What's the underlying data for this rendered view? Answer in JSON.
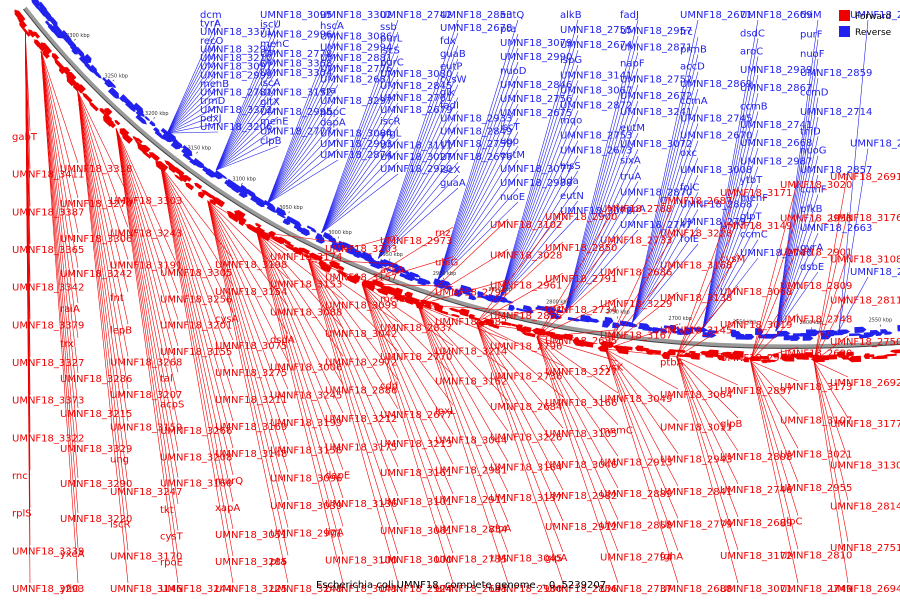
{
  "caption": "Escherichia coli UMNF18, complete genome. - 0..5239207",
  "legend": [
    {
      "label": "Forward",
      "color": "#ee0000"
    },
    {
      "label": "Reverse",
      "color": "#2222ee"
    }
  ],
  "colors": {
    "forward": "#ee0000",
    "reverse": "#2222ee",
    "backbone": "#808080"
  },
  "kbp_ticks": [
    "3300 kbp",
    "3250 kbp",
    "3200 kbp",
    "3150 kbp",
    "3100 kbp",
    "3050 kbp",
    "3000 kbp",
    "2950 kbp",
    "2900 kbp",
    "2850 kbp",
    "2800 kbp",
    "2750 kbp",
    "2700 kbp",
    "2650 kbp",
    "2600 kbp",
    "2550 kbp"
  ],
  "reverse_labels": [
    "dcm",
    "tyrA",
    "UMNF18_3371",
    "recO",
    "UMNF18_3294",
    "UMNF18_3210",
    "UMNF18_3097",
    "UMNF18_2999",
    "menB",
    "UMNF18_2781",
    "trmD",
    "UMNF18_3372",
    "pdxJ",
    "UMNF18_3206",
    "UMNF18_3095",
    "iscU",
    "UMNF18_2996",
    "menC",
    "UMNF18_2778",
    "UMNF18_3368",
    "UMNF18_3304",
    "iscA",
    "UMNF18_3152",
    "gltX",
    "UMNF18_2995",
    "menE",
    "UMNF18_2777",
    "clpB",
    "UMNF18_3302",
    "hscA",
    "UMNF18_3086",
    "UMNF18_2994",
    "UMNF18_2881",
    "UMNF18_2776",
    "UMNF18_2681",
    "era",
    "UMNF18_3297",
    "pbpC",
    "dapA",
    "UMNF18_3084",
    "UMNF18_2993",
    "UMNF18_2874",
    "UMNF18_2742",
    "ssb",
    "purL",
    "iscS",
    "purC",
    "UMNF18_3080",
    "UMNF18_2845",
    "UMNF18_2761",
    "UMNF18_2679",
    "iscR",
    "yfgL",
    "UMNF18_3111",
    "UMNF18_3027",
    "UMNF18_2920",
    "UMNF18_2853",
    "UMNF18_2678",
    "fdx",
    "guaB",
    "eutP",
    "cysW",
    "glk",
    "fadI",
    "UMNF18_2933",
    "UMNF18_2849",
    "UMNF18_2759",
    "UMNF18_2676",
    "iscX",
    "guaA",
    "eutQ",
    "pta",
    "UMNF18_3079",
    "UMNF18_2990",
    "nuoD",
    "UMNF18_2846",
    "UMNF18_2756",
    "UMNF18_2675",
    "iscT",
    "upp",
    "eutM",
    "UMNF18_3077",
    "UMNF18_2988",
    "nuoE",
    "alkB",
    "UMNF18_2755",
    "UMNF18_2674",
    "ispG",
    "UMNF18_3141",
    "UMNF18_3067",
    "UMNF18_2872",
    "mqo",
    "UMNF18_2753",
    "UMNF18_2673",
    "hisS",
    "hda",
    "eutN",
    "UMNF18_3078",
    "fadJ",
    "UMNF18_2957",
    "UMNF18_2871",
    "napF",
    "UMNF18_2752",
    "UMNF18_2672",
    "UMNF18_3241",
    "eutM",
    "UMNF18_3072",
    "sixA",
    "truA",
    "UMNF18_2870",
    "napA",
    "UMNF18_2747",
    "UMNF18_2671",
    "frc",
    "prmB",
    "accD",
    "UMNF18_2869",
    "ccmA",
    "UMNF18_2745",
    "UMNF18_2670",
    "oxc",
    "UMNF18_3008",
    "folC",
    "UMNF18_2868",
    "UMNF18_2797",
    "rolE",
    "UMNF18_2669",
    "dsdC",
    "aroC",
    "UMNF18_2939",
    "UMNF18_2867",
    "ccmB",
    "UMNF18_2741",
    "UMNF18_2668",
    "UMNF18_2987",
    "ytbT",
    "menF",
    "glpT",
    "ccmC",
    "UMNF18_2740",
    "thiM",
    "purF",
    "nuoF",
    "UMNF18_2859",
    "ccmD",
    "UMNF18_2714",
    "thiD",
    "nuoG",
    "UMNF18_2857",
    "ccmF",
    "pfkB",
    "UMNF18_2663",
    "gyrA",
    "dsbE",
    "UMNF18_2739",
    "UMNF18_2661",
    "UMNF18_2738"
  ],
  "forward_labels": [
    "gabT",
    "UMNF18_3411",
    "UMNF18_3387",
    "UMNF18_3365",
    "UMNF18_3342",
    "UMNF18_3379",
    "UMNF18_3327",
    "UMNF18_3373",
    "UMNF18_3322",
    "rnc",
    "rplS",
    "UMNF18_3339",
    "UMNF18_3293",
    "UMNF18_3318",
    "UMNF18_3274",
    "UMNF18_3306",
    "UMNF18_3242",
    "raiA",
    "trx",
    "UMNF18_3286",
    "UMNF18_3215",
    "UMNF18_3329",
    "UMNF18_3290",
    "UMNF18_3220",
    "yxeA",
    "yfiO",
    "UMNF18_3303",
    "UMNF18_3243",
    "UMNF18_3191",
    "fnt",
    "lepB",
    "UMNF18_3268",
    "UMNF18_3207",
    "UMNF18_3159",
    "ung",
    "UMNF18_3247",
    "iscR",
    "UMNF18_3170",
    "UMNF18_3146",
    "UMNF18_3305",
    "UMNF18_3256",
    "UMNF18_3201",
    "UMNF18_3155",
    "tal",
    "acpS",
    "UMNF18_3266",
    "UMNF18_3208",
    "UMNF18_3160",
    "tkt",
    "cysT",
    "rpoE",
    "UMNF18_3244",
    "UMNF18_3198",
    "UMNF18_3154",
    "cysA",
    "UMNF18_3075",
    "UMNF18_3275",
    "UMNF18_3211",
    "UMNF18_3169",
    "UMNF18_3148",
    "murQ",
    "xapA",
    "UMNF18_3051",
    "UMNF18_3285",
    "UMNF18_3225",
    "UMNF18_3174",
    "UMNF18_3153",
    "UMNF18_3088",
    "dsdA",
    "UMNF18_3006",
    "UMNF18_3245",
    "UMNF18_3199",
    "UMNF18_3156",
    "UMNF18_3096",
    "UMNF18_3039",
    "UMNF18_2971",
    "pta",
    "UMNF18_3248",
    "UMNF18_3203",
    "UMNF18_3157",
    "UMNF18_3099",
    "UMNF18_3042",
    "UMNF18_2972",
    "UMNF18_2886",
    "UMNF18_3212",
    "UMNF18_3175",
    "dapE",
    "UMNF18_3136",
    "ligA",
    "UMNF18_3100",
    "UMNF18_3043",
    "UMNF18_2973",
    "ackA",
    "menD",
    "UMNF18_2837",
    "UMNF18_2770",
    "cdd",
    "UMNF18_2677",
    "UMNF18_3213",
    "UMNF18_3161",
    "UMNF18_3101",
    "UMNF18_3061",
    "UMNF18_3000",
    "UMNF18_2924",
    "rnz",
    "ubiG",
    "UMNF18_2795",
    "UMNF18_2682",
    "UMNF18_3214",
    "UMNF18_3162",
    "lpxL",
    "UMNF18_3044",
    "UMNF18_2981",
    "UMNF18_2911",
    "UMNF18_2854",
    "UMNF18_2735",
    "UMNF18_2683",
    "UMNF18_3102",
    "UMNF18_3028",
    "UMNF18_2961",
    "UMNF18_2855",
    "UMNF18_2796",
    "UMNF18_2736",
    "UMNF18_2684",
    "UMNF18_3226",
    "UMNF18_3164",
    "UMNF18_3137",
    "zipA",
    "UMNF18_3045",
    "UMNF18_2980",
    "UMNF18_2900",
    "UMNF18_2850",
    "UMNF18_2791",
    "UMNF18_2734",
    "UMNF18_2685",
    "UMNF18_3227",
    "UMNF18_3166",
    "UMNF18_3105",
    "UMNF18_3046",
    "UMNF18_2982",
    "UMNF18_2912",
    "glpA",
    "UMNF18_2856",
    "UMNF18_2788",
    "UMNF18_2733",
    "UMNF18_2686",
    "UMNF18_3229",
    "UMNF18_3167",
    "cysK",
    "UMNF18_3049",
    "mnmC",
    "UMNF18_2913",
    "UMNF18_2889",
    "UMNF18_2858",
    "UMNF18_2794",
    "UMNF18_2737",
    "UMNF18_2687",
    "UMNF18_3228",
    "UMNF18_3168",
    "UMNF18_3138",
    "UMNF18_3145",
    "ptbA",
    "UMNF18_3064",
    "UMNF18_3011",
    "UMNF18_2943",
    "UMNF18_2841",
    "UMNF18_2779",
    "fghA",
    "UMNF18_2688",
    "UMNF18_3171",
    "UMNF18_3149",
    "cysM",
    "UMNF18_3068",
    "UMNF18_3019",
    "UMNF18_2948",
    "UMNF18_2897",
    "glpB",
    "UMNF18_2808",
    "UMNF18_2746",
    "UMNF18_2689",
    "UMNF18_3172",
    "UMNF18_3071",
    "UMNF18_3020",
    "UMNF18_2953",
    "UMNF18_2901",
    "UMNF18_2809",
    "UMNF18_2748",
    "UMNF18_2690",
    "UMNF18_3173",
    "UMNF18_3107",
    "UMNF18_3021",
    "UMNF18_2955",
    "glpC",
    "UMNF18_2810",
    "UMNF18_2749",
    "UMNF18_2691",
    "UMNF18_3176",
    "UMNF18_3108",
    "UMNF18_2811",
    "UMNF18_2750",
    "UMNF18_2692",
    "UMNF18_3177",
    "UMNF18_3130",
    "UMNF18_2814",
    "UMNF18_2751",
    "UMNF18_2694"
  ]
}
